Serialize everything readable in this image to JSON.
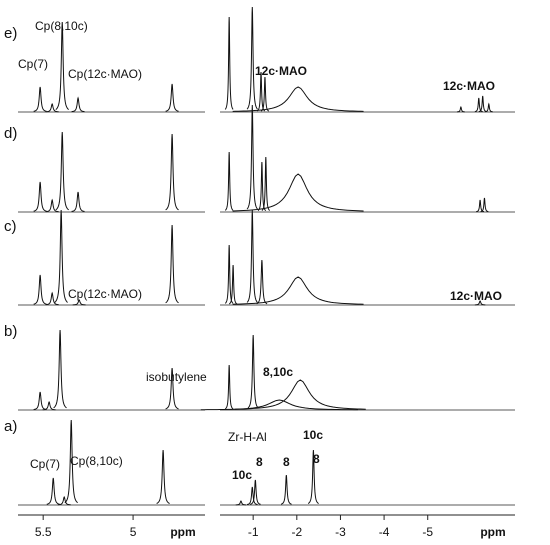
{
  "chart_data": [
    {
      "type": "spectrum",
      "xlabel": "ppm",
      "xlim": [
        5.64,
        4.6
      ],
      "xticks": [
        5.5,
        5.0
      ],
      "traces": [
        {
          "name": "a)",
          "peaks": [
            5.444,
            5.383,
            5.344,
            4.833
          ],
          "heights": [
            27,
            8,
            85,
            55
          ],
          "widths": [
            0.006,
            0.006,
            0.006,
            0.006
          ]
        },
        {
          "name": "b)",
          "peaks": [
            5.517,
            5.467,
            5.406,
            4.783
          ],
          "heights": [
            18,
            8,
            80,
            42
          ],
          "widths": [
            0.006,
            0.006,
            0.006,
            0.006
          ]
        },
        {
          "name": "c)",
          "peaks": [
            5.517,
            5.45,
            5.4,
            5.3,
            4.783
          ],
          "heights": [
            30,
            12,
            95,
            5,
            80
          ],
          "widths": [
            0.006,
            0.006,
            0.006,
            0.006,
            0.006
          ]
        },
        {
          "name": "d)",
          "peaks": [
            5.517,
            5.45,
            5.394,
            5.306,
            4.783
          ],
          "heights": [
            30,
            12,
            80,
            20,
            78
          ],
          "widths": [
            0.006,
            0.006,
            0.006,
            0.006,
            0.006
          ]
        },
        {
          "name": "e)",
          "peaks": [
            5.517,
            5.45,
            5.394,
            5.306,
            4.783
          ],
          "heights": [
            25,
            8,
            90,
            14,
            28
          ],
          "widths": [
            0.006,
            0.006,
            0.006,
            0.006,
            0.006
          ]
        }
      ],
      "annotations": [
        {
          "text": "Cp(7)",
          "bold": false
        },
        {
          "text": "Cp(8,10c)",
          "bold": false
        },
        {
          "text": "Cp(12c·MAO)",
          "bold": false
        },
        {
          "text": "Cp(12c·MAO)",
          "bold": false
        },
        {
          "text": "isobutylene",
          "bold": false
        },
        {
          "text": "Cp(8,10c)",
          "bold": false
        },
        {
          "text": "Cp(7)",
          "bold": false
        }
      ]
    },
    {
      "type": "spectrum",
      "xlabel": "ppm",
      "xlim": [
        -0.24,
        -7.0
      ],
      "xticks": [
        -1,
        -2,
        -3,
        -4,
        -5
      ],
      "traces": [
        {
          "peaks": [
            -0.72,
            -0.98,
            -1.05,
            -1.76,
            -2.38
          ],
          "heights": [
            4,
            18,
            25,
            30,
            55
          ],
          "widths": [
            0.02,
            0.02,
            0.02,
            0.02,
            0.02
          ]
        },
        {
          "peaks": [
            -0.45,
            -1.0,
            -1.6,
            -2.08
          ],
          "heights": [
            45,
            75,
            10,
            30
          ],
          "widths": [
            0.015,
            0.02,
            0.3,
            0.25
          ]
        },
        {
          "peaks": [
            -0.45,
            -0.54,
            -0.98,
            -1.2,
            -2.03,
            -6.2
          ],
          "heights": [
            60,
            40,
            95,
            45,
            28,
            4
          ],
          "widths": [
            0.015,
            0.015,
            0.02,
            0.02,
            0.25,
            0.02
          ]
        },
        {
          "peaks": [
            -0.45,
            -0.98,
            -1.2,
            -1.29,
            -2.03,
            -6.2,
            -6.3
          ],
          "heights": [
            60,
            107,
            50,
            55,
            38,
            12,
            14
          ],
          "widths": [
            0.015,
            0.02,
            0.015,
            0.015,
            0.25,
            0.015,
            0.015
          ]
        },
        {
          "peaks": [
            -0.45,
            -0.98,
            -1.18,
            -1.27,
            -2.03,
            -5.76,
            -6.17,
            -6.26,
            -6.4
          ],
          "heights": [
            95,
            105,
            40,
            35,
            25,
            5,
            14,
            16,
            8
          ],
          "widths": [
            0.015,
            0.02,
            0.015,
            0.015,
            0.25,
            0.015,
            0.015,
            0.015,
            0.015
          ]
        }
      ],
      "annotations": [
        {
          "text": "12c·MAO",
          "bold": true
        },
        {
          "text": "12c·MAO",
          "bold": true
        },
        {
          "text": "12c·MAO",
          "bold": true
        },
        {
          "text": "8,10c",
          "bold": true
        },
        {
          "text": "Zr-H-Al",
          "bold": false
        },
        {
          "text": "10c",
          "bold": true
        },
        {
          "text": "10c",
          "bold": true
        },
        {
          "text": "8",
          "bold": true
        },
        {
          "text": "8",
          "bold": true
        },
        {
          "text": "8",
          "bold": true
        }
      ]
    }
  ]
}
